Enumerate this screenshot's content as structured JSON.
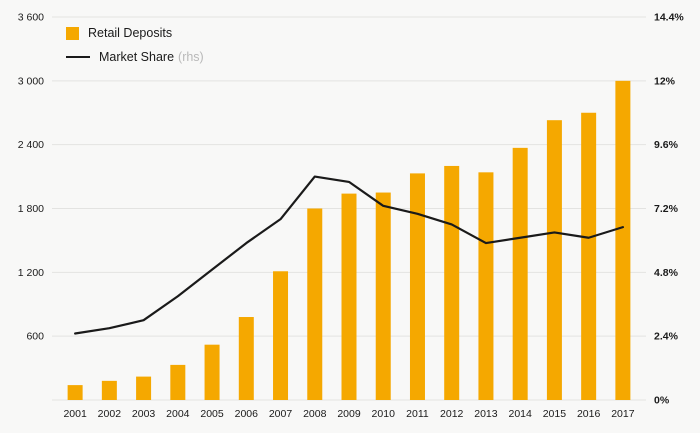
{
  "chart_data": {
    "type": "combo",
    "title": "",
    "categories": [
      "2001",
      "2002",
      "2003",
      "2004",
      "2005",
      "2006",
      "2007",
      "2008",
      "2009",
      "2010",
      "2011",
      "2012",
      "2013",
      "2014",
      "2015",
      "2016",
      "2017"
    ],
    "series": [
      {
        "name": "Retail Deposits",
        "type": "bar",
        "axis": "left",
        "color": "#F5A800",
        "values": [
          140,
          180,
          220,
          330,
          520,
          780,
          1210,
          1800,
          1940,
          1950,
          2130,
          2200,
          2140,
          2370,
          2630,
          2700,
          3000
        ]
      },
      {
        "name": "Market Share",
        "type": "line",
        "axis": "right",
        "color": "#1a1a1a",
        "values": [
          2.5,
          2.7,
          3.0,
          3.9,
          4.9,
          5.9,
          6.8,
          8.4,
          8.2,
          7.3,
          7.0,
          6.6,
          5.9,
          6.1,
          6.3,
          6.1,
          6.5
        ]
      }
    ],
    "left_axis": {
      "min": 0,
      "max": 3600,
      "step": 600,
      "tick_labels": [
        "600",
        "1 200",
        "1 800",
        "2 400",
        "3 000",
        "3 600"
      ],
      "show_zero_label": false
    },
    "right_axis": {
      "min": 0,
      "max": 14.4,
      "step": 2.4,
      "tick_labels": [
        "0%",
        "2.4%",
        "4.8%",
        "7.2%",
        "9.6%",
        "12%",
        "14.4%"
      ]
    },
    "legend": [
      {
        "label": "Retail Deposits",
        "marker": "square",
        "color": "#F5A800"
      },
      {
        "label": "Market Share",
        "suffix": "(rhs)",
        "marker": "line",
        "color": "#1a1a1a"
      }
    ],
    "grid": true,
    "grid_color": "#e3e3e1",
    "background": "#f8f8f7",
    "tick_text_color": "#1a1a1a",
    "legend_position": "top-left"
  }
}
